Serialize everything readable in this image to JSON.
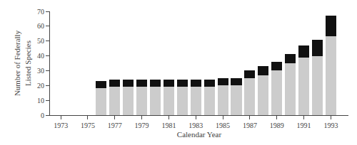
{
  "chart_data": {
    "type": "bar",
    "stacked": true,
    "x": [
      1973,
      1975,
      1976,
      1977,
      1978,
      1979,
      1980,
      1981,
      1982,
      1983,
      1984,
      1985,
      1986,
      1987,
      1988,
      1989,
      1990,
      1991,
      1992,
      1993
    ],
    "series": [
      {
        "color": "#cccccc",
        "values": [
          0,
          0,
          18,
          19,
          19,
          19,
          19,
          19,
          19,
          19,
          19,
          20,
          20,
          25,
          27,
          30,
          35,
          39,
          40,
          53
        ]
      },
      {
        "color": "#111111",
        "values": [
          0,
          0,
          5,
          5,
          5,
          5,
          5,
          5,
          5,
          5,
          5,
          5,
          5,
          5,
          6,
          6,
          6,
          8,
          11,
          14
        ]
      }
    ],
    "xlabel": "Calendar Year",
    "ylabel": "Number of Federally\nListed Species",
    "xlim": [
      1972.2,
      1994.3
    ],
    "xticks": [
      1973,
      1975,
      1977,
      1979,
      1981,
      1983,
      1985,
      1987,
      1989,
      1991,
      1993
    ],
    "ylim": [
      0,
      70
    ],
    "yticks": [
      0,
      10,
      20,
      30,
      40,
      50,
      60,
      70
    ],
    "grid": false
  }
}
